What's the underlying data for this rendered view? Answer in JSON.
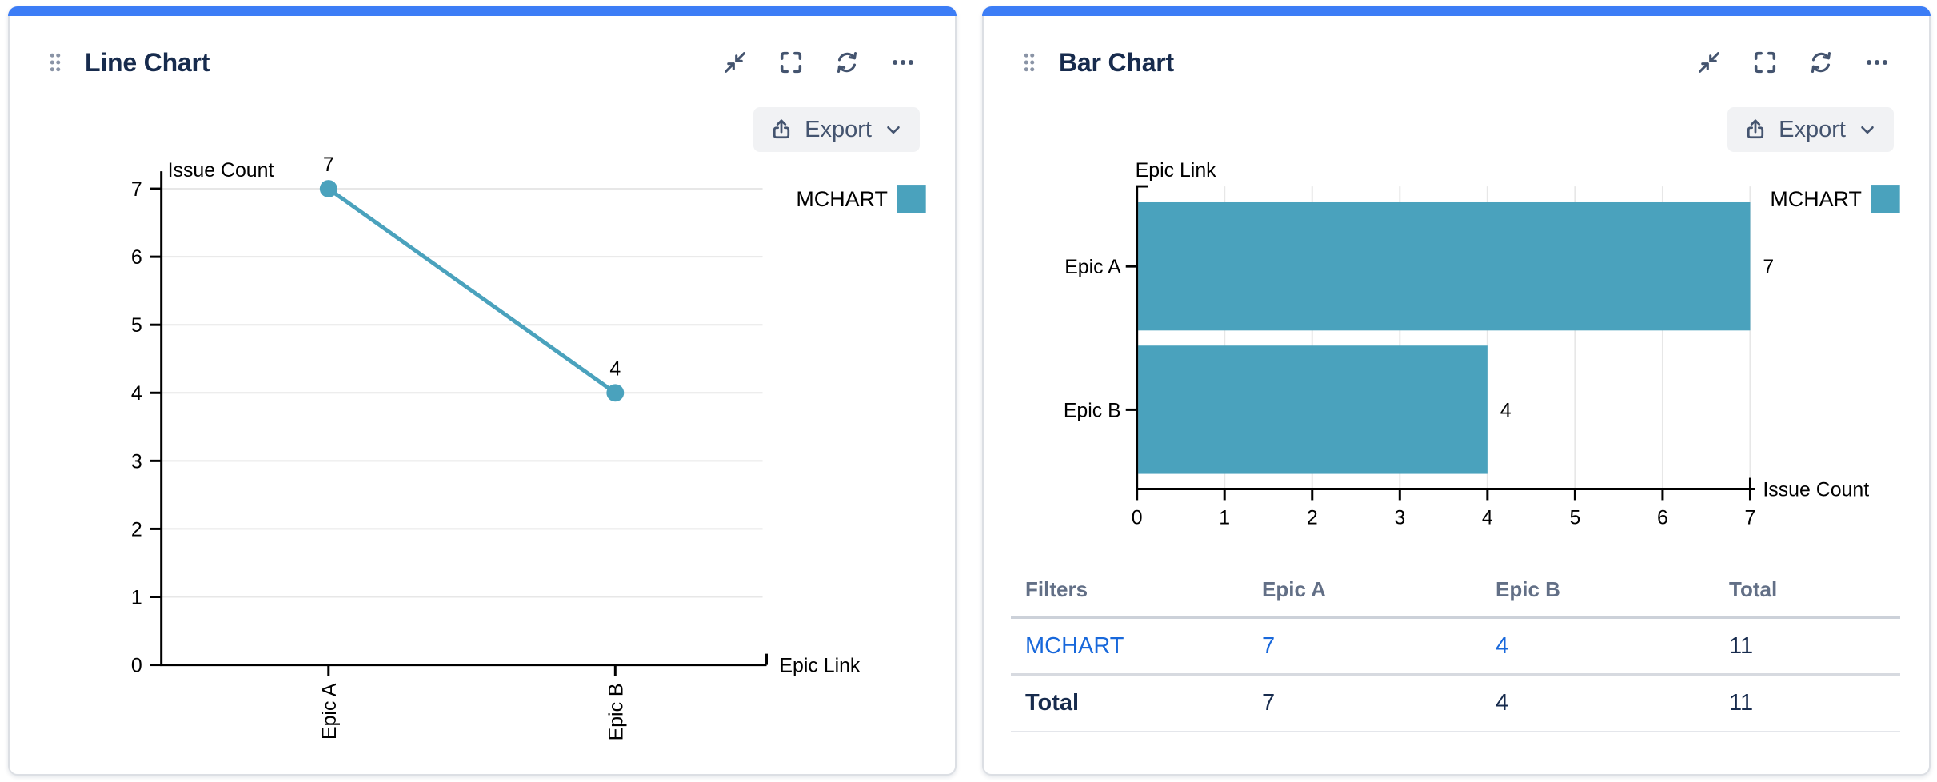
{
  "colors": {
    "accent_bar": "#3C7DF6",
    "series_teal": "#4AA2BD",
    "link_blue": "#1868DB",
    "title_navy": "#172B4D",
    "icon_slate": "#44546F"
  },
  "panels": [
    {
      "title": "Line Chart",
      "header_icons": [
        "collapse",
        "fullscreen",
        "refresh",
        "more"
      ],
      "toolbar": {
        "export_label": "Export"
      }
    },
    {
      "title": "Bar Chart",
      "header_icons": [
        "collapse",
        "fullscreen",
        "refresh",
        "more"
      ],
      "toolbar": {
        "export_label": "Export"
      },
      "table": {
        "headers": [
          "Filters",
          "Epic A",
          "Epic B",
          "Total"
        ],
        "rows": [
          {
            "label": "MCHART",
            "values": [
              "7",
              "4",
              "11"
            ]
          },
          {
            "label": "Total",
            "values": [
              "7",
              "4",
              "11"
            ]
          }
        ]
      }
    }
  ],
  "chart_data": [
    {
      "id": "line",
      "type": "line",
      "categories": [
        "Epic A",
        "Epic B"
      ],
      "series": [
        {
          "name": "MCHART",
          "values": [
            7,
            4
          ],
          "color": "#4AA2BD"
        }
      ],
      "xlabel": "Epic Link",
      "ylabel": "Issue Count",
      "ylim": [
        0,
        7
      ],
      "yticks": [
        0,
        1,
        2,
        3,
        4,
        5,
        6,
        7
      ],
      "grid": "horizontal",
      "legend_position": "top-right",
      "data_labels": true
    },
    {
      "id": "bar",
      "type": "bar",
      "orientation": "horizontal",
      "categories": [
        "Epic A",
        "Epic B"
      ],
      "series": [
        {
          "name": "MCHART",
          "values": [
            7,
            4
          ],
          "color": "#4AA2BD"
        }
      ],
      "xlabel": "Issue Count",
      "ylabel": "Epic Link",
      "xlim": [
        0,
        7
      ],
      "xticks": [
        0,
        1,
        2,
        3,
        4,
        5,
        6,
        7
      ],
      "grid": "vertical",
      "legend_position": "top-right",
      "data_labels": true
    }
  ]
}
